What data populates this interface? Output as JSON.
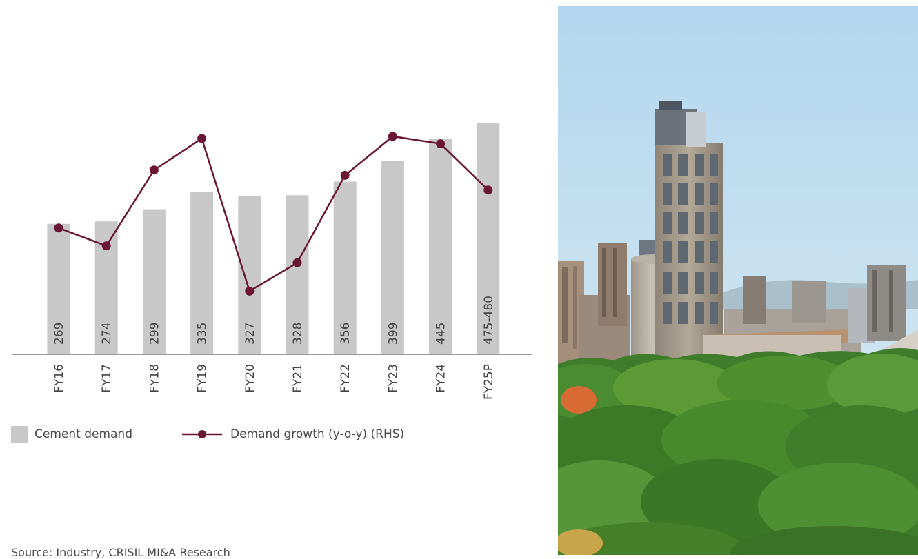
{
  "chart_data": {
    "type": "bar",
    "categories": [
      "FY16",
      "FY17",
      "FY18",
      "FY19",
      "FY20",
      "FY21",
      "FY22",
      "FY23",
      "FY24",
      "FY25P"
    ],
    "series": [
      {
        "name": "Cement demand",
        "type": "bar",
        "values": [
          269,
          274,
          299,
          335,
          327,
          328,
          356,
          399,
          445,
          477.5
        ],
        "labels": [
          "269",
          "274",
          "299",
          "335",
          "327",
          "328",
          "356",
          "399",
          "445",
          "475-480"
        ],
        "color": "#c8c8c8"
      },
      {
        "name": "Demand growth (y-o-y) (RHS)",
        "type": "line",
        "values": [
          3.6,
          1.9,
          9.1,
          12.1,
          -2.4,
          0.3,
          8.6,
          12.3,
          11.6,
          7.2
        ],
        "color": "#6b1535"
      }
    ],
    "axis": {
      "left_ylim": [
        0,
        560
      ],
      "right_ylim": [
        -8.4,
        17.4
      ]
    },
    "grid": false,
    "legend_position": "bottom-left"
  },
  "legend": {
    "bar_label": "Cement demand",
    "line_label": "Demand growth (y-o-y) (RHS)"
  },
  "source": "Source: Industry, CRISIL MI&A Research",
  "photo": {
    "icon": "cement-plant-photo"
  }
}
